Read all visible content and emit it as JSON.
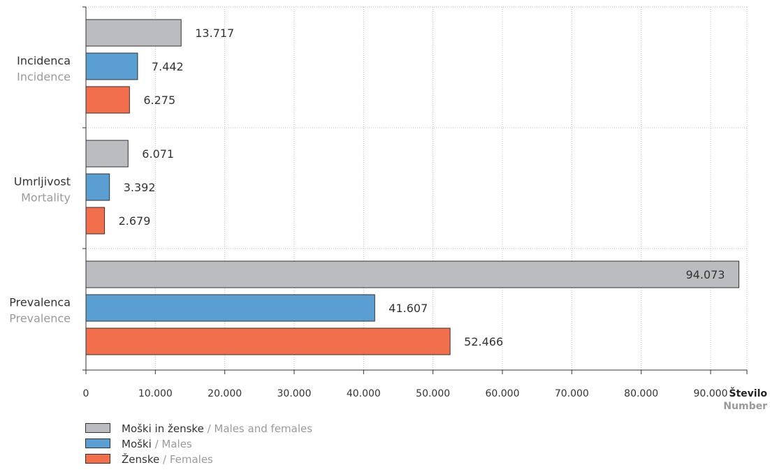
{
  "chart_data": {
    "type": "bar",
    "orientation": "horizontal",
    "categories": [
      {
        "label": "Incidenca",
        "sublabel": "Incidence"
      },
      {
        "label": "Umrljivost",
        "sublabel": "Mortality"
      },
      {
        "label": "Prevalenca",
        "sublabel": "Prevalence"
      }
    ],
    "series": [
      {
        "name": "Moški in ženske",
        "name_en": "Males and females",
        "color": "#babcbf",
        "values": [
          13717,
          6071,
          94073
        ],
        "labels": [
          "13.717",
          "6.071",
          "94.073"
        ]
      },
      {
        "name": "Moški",
        "name_en": "Males",
        "color": "#5b9fd2",
        "values": [
          7442,
          3392,
          41607
        ],
        "labels": [
          "7.442",
          "3.392",
          "41.607"
        ]
      },
      {
        "name": "Ženske",
        "name_en": "Females",
        "color": "#f26f4e",
        "values": [
          6275,
          2679,
          52466
        ],
        "labels": [
          "6.275",
          "2.679",
          "52.466"
        ]
      }
    ],
    "xlabel": "Število",
    "xlabel_en": "Number",
    "xlim": [
      0,
      100000
    ],
    "xticks": [
      0,
      10000,
      20000,
      30000,
      40000,
      50000,
      60000,
      70000,
      80000,
      90000
    ],
    "xtick_labels": [
      "0",
      "10.000",
      "20.000",
      "30.000",
      "40.000",
      "50.000",
      "60.000",
      "70.000",
      "80.000",
      "90.000"
    ],
    "grid": true,
    "legend_position": "bottom-left"
  }
}
